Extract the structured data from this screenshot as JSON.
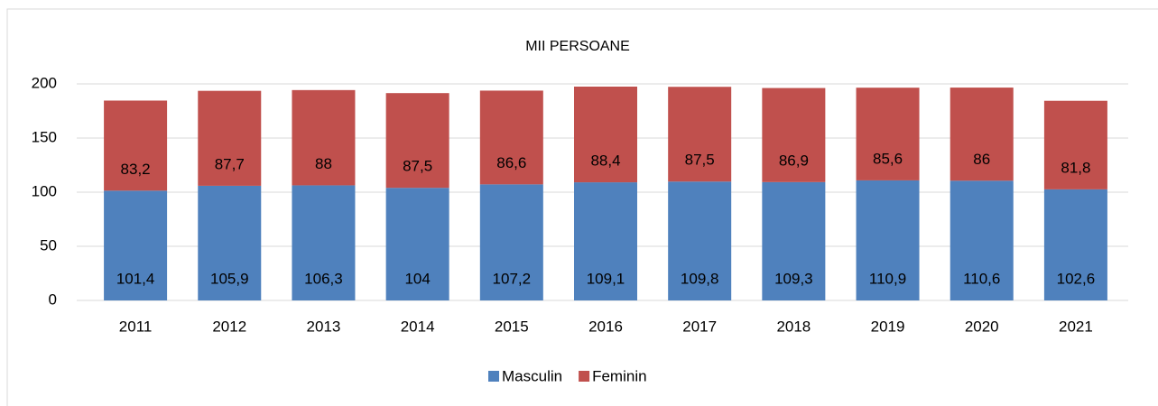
{
  "chart_data": {
    "type": "stacked_bar",
    "title": "MII PERSOANE",
    "categories": [
      "2011",
      "2012",
      "2013",
      "2014",
      "2015",
      "2016",
      "2017",
      "2018",
      "2019",
      "2020",
      "2021"
    ],
    "series": [
      {
        "name": "Masculin",
        "color": "#4f81bd",
        "values": [
          101.4,
          105.9,
          106.3,
          104,
          107.2,
          109.1,
          109.8,
          109.3,
          110.9,
          110.6,
          102.6
        ],
        "value_labels": [
          "101,4",
          "105,9",
          "106,3",
          "104",
          "107,2",
          "109,1",
          "109,8",
          "109,3",
          "110,9",
          "110,6",
          "102,6"
        ]
      },
      {
        "name": "Feminin",
        "color": "#c0504d",
        "values": [
          83.2,
          87.7,
          88,
          87.5,
          86.6,
          88.4,
          87.5,
          86.9,
          85.6,
          86,
          81.8
        ],
        "value_labels": [
          "83,2",
          "87,7",
          "88",
          "87,5",
          "86,6",
          "88,4",
          "87,5",
          "86,9",
          "85,6",
          "86",
          "81,8"
        ]
      }
    ],
    "ylim": [
      0,
      200
    ],
    "yticks": [
      0,
      50,
      100,
      150,
      200
    ],
    "grid": true,
    "legend": "bottom"
  }
}
